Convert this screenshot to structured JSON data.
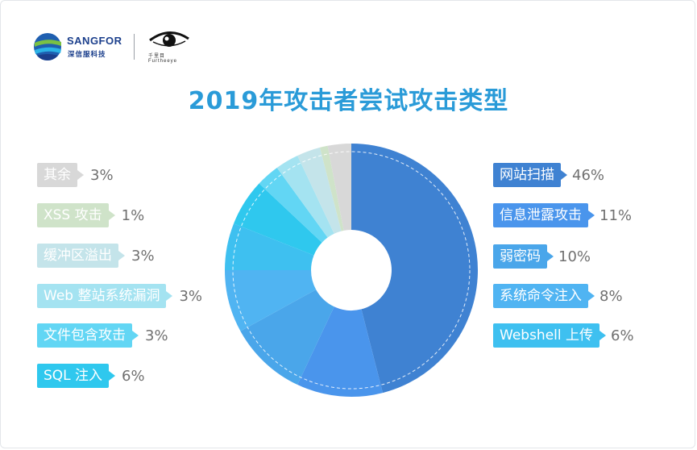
{
  "logos": {
    "sangfor_en": "SANGFOR",
    "sangfor_cn": "深信服科技",
    "eye_cn": "千里目",
    "eye_en": "Furtheeye"
  },
  "chart_data": {
    "type": "pie",
    "title": "2019年攻击者尝试攻击类型",
    "slices": [
      {
        "label": "网站扫描",
        "value": 46,
        "display": "46%",
        "color": "#3f82d2"
      },
      {
        "label": "信息泄露攻击",
        "value": 11,
        "display": "11%",
        "color": "#4a95ec"
      },
      {
        "label": "弱密码",
        "value": 10,
        "display": "10%",
        "color": "#4aa6ea"
      },
      {
        "label": "系统命令注入",
        "value": 8,
        "display": "8%",
        "color": "#50b4f2"
      },
      {
        "label": "Webshell 上传",
        "value": 6,
        "display": "6%",
        "color": "#3ec0f0"
      },
      {
        "label": "SQL 注入",
        "value": 6,
        "display": "6%",
        "color": "#2fc8ee"
      },
      {
        "label": "文件包含攻击",
        "value": 3,
        "display": "3%",
        "color": "#62d6f4"
      },
      {
        "label": "Web 整站系统漏洞",
        "value": 3,
        "display": "3%",
        "color": "#a4e3f1"
      },
      {
        "label": "缓冲区溢出",
        "value": 3,
        "display": "3%",
        "color": "#c4e4ea"
      },
      {
        "label": "XSS 攻击",
        "value": 1,
        "display": "1%",
        "color": "#cfe3c9"
      },
      {
        "label": "其余",
        "value": 3,
        "display": "3%",
        "color": "#d8d8d8"
      }
    ],
    "legend_placement": "split left and right of chart"
  }
}
